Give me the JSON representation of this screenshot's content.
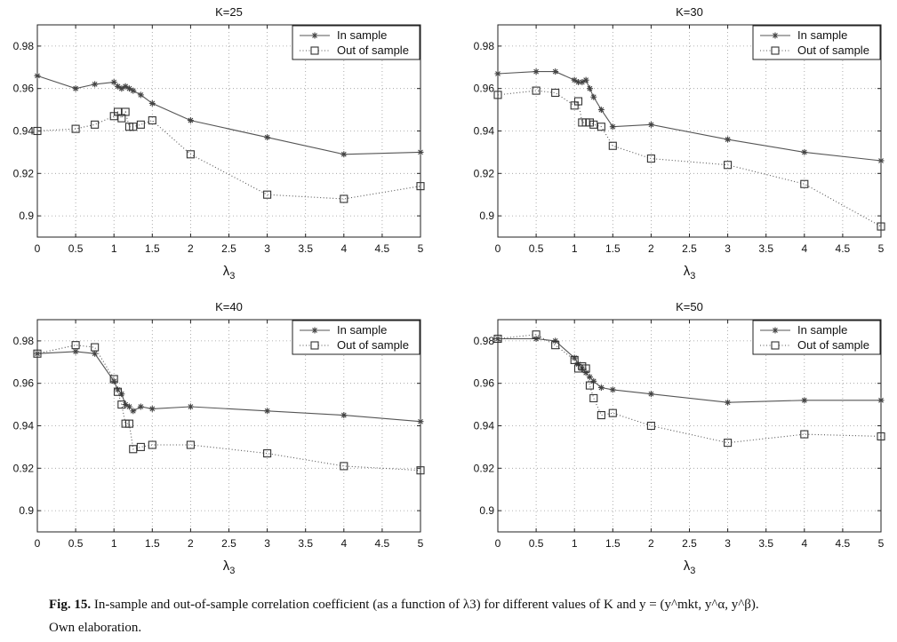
{
  "legend": {
    "in_sample": "In sample",
    "out_of_sample": "Out of sample",
    "position": "top-right"
  },
  "chart_data": [
    {
      "type": "line",
      "title": "K=25",
      "xlabel": "λ3",
      "ylabel": "",
      "xlim": [
        0,
        5
      ],
      "ylim": [
        0.89,
        0.99
      ],
      "xticks": [
        0,
        0.5,
        1,
        1.5,
        2,
        2.5,
        3,
        3.5,
        4,
        4.5,
        5
      ],
      "yticks": [
        0.9,
        0.92,
        0.94,
        0.96,
        0.98
      ],
      "grid": true,
      "series": [
        {
          "name": "In sample",
          "style": "solid-star",
          "x": [
            0,
            0.5,
            0.75,
            1,
            1.05,
            1.1,
            1.15,
            1.2,
            1.25,
            1.35,
            1.5,
            2,
            3,
            4,
            5
          ],
          "y": [
            0.966,
            0.96,
            0.962,
            0.963,
            0.961,
            0.96,
            0.961,
            0.96,
            0.959,
            0.957,
            0.953,
            0.945,
            0.937,
            0.929,
            0.93
          ]
        },
        {
          "name": "Out of sample",
          "style": "dotted-square",
          "x": [
            0,
            0.5,
            0.75,
            1,
            1.05,
            1.1,
            1.15,
            1.2,
            1.25,
            1.35,
            1.5,
            2,
            3,
            4,
            5
          ],
          "y": [
            0.94,
            0.941,
            0.943,
            0.947,
            0.949,
            0.946,
            0.949,
            0.942,
            0.942,
            0.943,
            0.945,
            0.929,
            0.91,
            0.908,
            0.914
          ]
        }
      ]
    },
    {
      "type": "line",
      "title": "K=30",
      "xlabel": "λ3",
      "ylabel": "",
      "xlim": [
        0,
        5
      ],
      "ylim": [
        0.89,
        0.99
      ],
      "xticks": [
        0,
        0.5,
        1,
        1.5,
        2,
        2.5,
        3,
        3.5,
        4,
        4.5,
        5
      ],
      "yticks": [
        0.9,
        0.92,
        0.94,
        0.96,
        0.98
      ],
      "grid": true,
      "series": [
        {
          "name": "In sample",
          "style": "solid-star",
          "x": [
            0,
            0.5,
            0.75,
            1,
            1.05,
            1.1,
            1.15,
            1.2,
            1.25,
            1.35,
            1.5,
            2,
            3,
            4,
            5
          ],
          "y": [
            0.967,
            0.968,
            0.968,
            0.964,
            0.963,
            0.963,
            0.964,
            0.96,
            0.956,
            0.95,
            0.942,
            0.943,
            0.936,
            0.93,
            0.926
          ]
        },
        {
          "name": "Out of sample",
          "style": "dotted-square",
          "x": [
            0,
            0.5,
            0.75,
            1,
            1.05,
            1.1,
            1.15,
            1.2,
            1.25,
            1.35,
            1.5,
            2,
            3,
            4,
            5
          ],
          "y": [
            0.957,
            0.959,
            0.958,
            0.952,
            0.954,
            0.944,
            0.944,
            0.944,
            0.943,
            0.942,
            0.933,
            0.927,
            0.924,
            0.915,
            0.895
          ]
        }
      ]
    },
    {
      "type": "line",
      "title": "K=40",
      "xlabel": "λ3",
      "ylabel": "",
      "xlim": [
        0,
        5
      ],
      "ylim": [
        0.89,
        0.99
      ],
      "xticks": [
        0,
        0.5,
        1,
        1.5,
        2,
        2.5,
        3,
        3.5,
        4,
        4.5,
        5
      ],
      "yticks": [
        0.9,
        0.92,
        0.94,
        0.96,
        0.98
      ],
      "grid": true,
      "series": [
        {
          "name": "In sample",
          "style": "solid-star",
          "x": [
            0,
            0.5,
            0.75,
            1,
            1.05,
            1.1,
            1.15,
            1.2,
            1.25,
            1.35,
            1.5,
            2,
            3,
            4,
            5
          ],
          "y": [
            0.974,
            0.975,
            0.974,
            0.961,
            0.957,
            0.955,
            0.95,
            0.949,
            0.947,
            0.949,
            0.948,
            0.949,
            0.947,
            0.945,
            0.942
          ]
        },
        {
          "name": "Out of sample",
          "style": "dotted-square",
          "x": [
            0,
            0.5,
            0.75,
            1,
            1.05,
            1.1,
            1.15,
            1.2,
            1.25,
            1.35,
            1.5,
            2,
            3,
            4,
            5
          ],
          "y": [
            0.974,
            0.978,
            0.977,
            0.962,
            0.956,
            0.95,
            0.941,
            0.941,
            0.929,
            0.93,
            0.931,
            0.931,
            0.927,
            0.921,
            0.919
          ]
        }
      ]
    },
    {
      "type": "line",
      "title": "K=50",
      "xlabel": "λ3",
      "ylabel": "",
      "xlim": [
        0,
        5
      ],
      "ylim": [
        0.89,
        0.99
      ],
      "xticks": [
        0,
        0.5,
        1,
        1.5,
        2,
        2.5,
        3,
        3.5,
        4,
        4.5,
        5
      ],
      "yticks": [
        0.9,
        0.92,
        0.94,
        0.96,
        0.98
      ],
      "grid": true,
      "series": [
        {
          "name": "In sample",
          "style": "solid-star",
          "x": [
            0,
            0.5,
            0.75,
            1,
            1.05,
            1.1,
            1.15,
            1.2,
            1.25,
            1.35,
            1.5,
            2,
            3,
            4,
            5
          ],
          "y": [
            0.981,
            0.981,
            0.98,
            0.972,
            0.969,
            0.967,
            0.965,
            0.963,
            0.961,
            0.958,
            0.957,
            0.955,
            0.951,
            0.952,
            0.952
          ]
        },
        {
          "name": "Out of sample",
          "style": "dotted-square",
          "x": [
            0,
            0.5,
            0.75,
            1,
            1.05,
            1.1,
            1.15,
            1.2,
            1.25,
            1.35,
            1.5,
            2,
            3,
            4,
            5
          ],
          "y": [
            0.981,
            0.983,
            0.978,
            0.971,
            0.967,
            0.968,
            0.967,
            0.959,
            0.953,
            0.945,
            0.946,
            0.94,
            0.932,
            0.936,
            0.935
          ]
        }
      ]
    }
  ],
  "caption": {
    "label": "Fig. 15.",
    "text": "In-sample and out-of-sample correlation coefficient (as a function of λ3) for different values of K and y = (y^mkt, y^α, y^β).",
    "source": "Own elaboration."
  }
}
